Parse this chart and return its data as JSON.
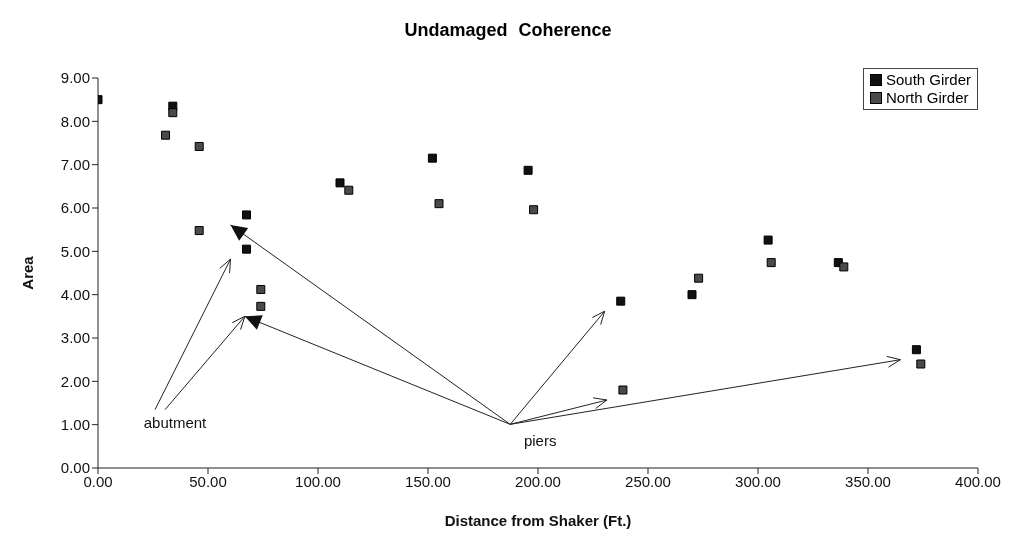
{
  "chart_data": {
    "type": "scatter",
    "title": "Undamaged Coherence",
    "xlabel": "Distance from Shaker (Ft.)",
    "ylabel": "Area",
    "series": [
      {
        "name": "South Girder",
        "color": "#111111",
        "x": [
          0,
          34,
          67.5,
          67.5,
          110,
          152,
          195.5,
          237.6,
          270,
          304.6,
          336.5,
          372
        ],
        "values": [
          8.5,
          8.35,
          5.84,
          5.05,
          6.58,
          7.15,
          6.87,
          3.85,
          4.0,
          5.26,
          4.74,
          2.73
        ]
      },
      {
        "name": "North Girder",
        "color": "#4a4a4a",
        "x": [
          34,
          30.7,
          46,
          46,
          74,
          74,
          114,
          155,
          198,
          238.6,
          273,
          306,
          339,
          374
        ],
        "values": [
          8.2,
          7.68,
          7.42,
          5.48,
          4.12,
          3.73,
          6.41,
          6.1,
          5.96,
          1.8,
          4.38,
          4.74,
          4.64,
          2.4
        ]
      }
    ],
    "xlim": [
      0,
      400
    ],
    "xticks": [
      {
        "value": 0,
        "label": "0.00"
      },
      {
        "value": 50,
        "label": "50.00"
      },
      {
        "value": 100,
        "label": "100.00"
      },
      {
        "value": 150,
        "label": "150.00"
      },
      {
        "value": 200,
        "label": "200.00"
      },
      {
        "value": 250,
        "label": "250.00"
      },
      {
        "value": 300,
        "label": "300.00"
      },
      {
        "value": 350,
        "label": "350.00"
      },
      {
        "value": 400,
        "label": "400.00"
      }
    ],
    "ylim": [
      0,
      9
    ],
    "yticks": [
      {
        "value": 0,
        "label": "0.00"
      },
      {
        "value": 1,
        "label": "1.00"
      },
      {
        "value": 2,
        "label": "2.00"
      },
      {
        "value": 3,
        "label": "3.00"
      },
      {
        "value": 4,
        "label": "4.00"
      },
      {
        "value": 5,
        "label": "5.00"
      },
      {
        "value": 6,
        "label": "6.00"
      },
      {
        "value": 7,
        "label": "7.00"
      },
      {
        "value": 8,
        "label": "8.00"
      },
      {
        "value": 9,
        "label": "9.00"
      }
    ],
    "annotations": [
      "abutment",
      "piers"
    ],
    "marker": "square",
    "legend": "top right",
    "grid": false
  }
}
